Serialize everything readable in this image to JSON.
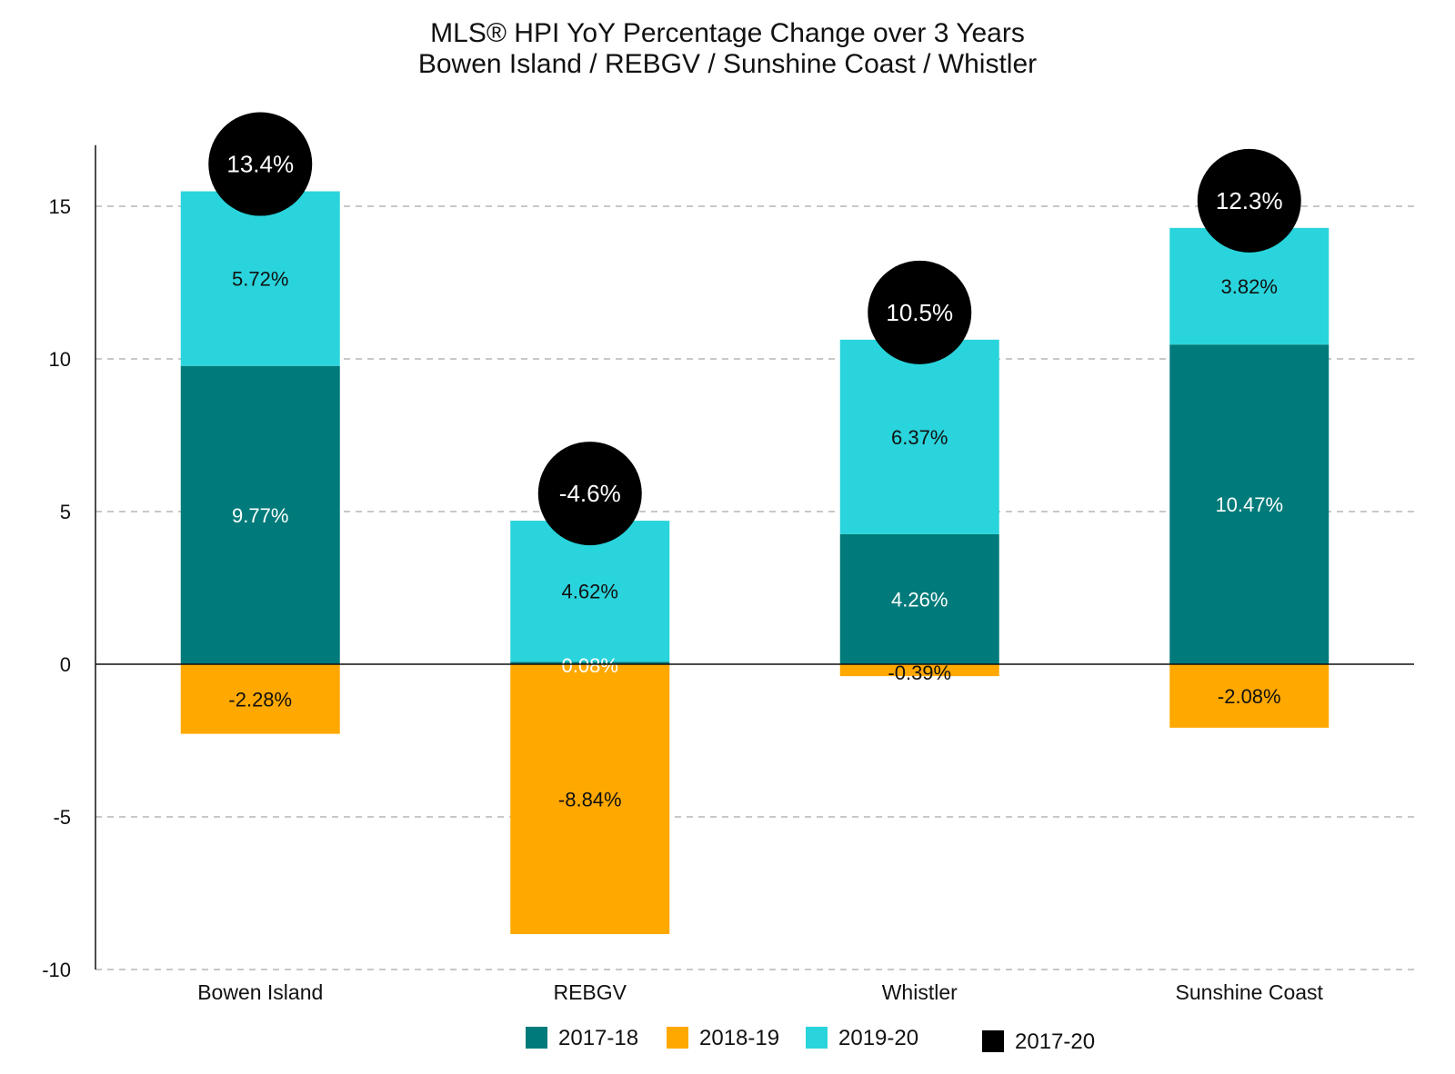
{
  "chart_data": {
    "type": "bar",
    "stacked": true,
    "title": "MLS® HPI YoY Percentage Change over 3 Years",
    "subtitle": "Bowen Island / REBGV / Sunshine Coast / Whistler",
    "categories": [
      "Bowen Island",
      "REBGV",
      "Whistler",
      "Sunshine Coast"
    ],
    "ylim": [
      -10,
      17
    ],
    "yticks": [
      -10,
      -5,
      0,
      5,
      10,
      15
    ],
    "ytick_labels": [
      "-10",
      "-5",
      "0",
      "5",
      "10",
      "15"
    ],
    "grid": true,
    "legend_position": "bottom",
    "series": [
      {
        "name": "2017-18",
        "color": "#007a7a",
        "values": [
          9.77,
          0.08,
          4.26,
          10.47
        ],
        "labels": [
          "9.77%",
          "0.08%",
          "4.26%",
          "10.47%"
        ],
        "label_color": "#ffffff"
      },
      {
        "name": "2018-19",
        "color": "#ffa800",
        "values": [
          -2.28,
          -8.84,
          -0.39,
          -2.08
        ],
        "labels": [
          "-2.28%",
          "-8.84%",
          "-0.39%",
          "-2.08%"
        ],
        "label_color": "#111111"
      },
      {
        "name": "2019-20",
        "color": "#2ad4dc",
        "values": [
          5.72,
          4.62,
          6.37,
          3.82
        ],
        "labels": [
          "5.72%",
          "4.62%",
          "6.37%",
          "3.82%"
        ],
        "label_color": "#111111"
      }
    ],
    "total": {
      "name": "2017-20",
      "color": "#000000",
      "values": [
        13.4,
        -4.6,
        10.5,
        12.3
      ],
      "labels": [
        "13.4%",
        "-4.6%",
        "10.5%",
        "12.3%"
      ]
    }
  }
}
